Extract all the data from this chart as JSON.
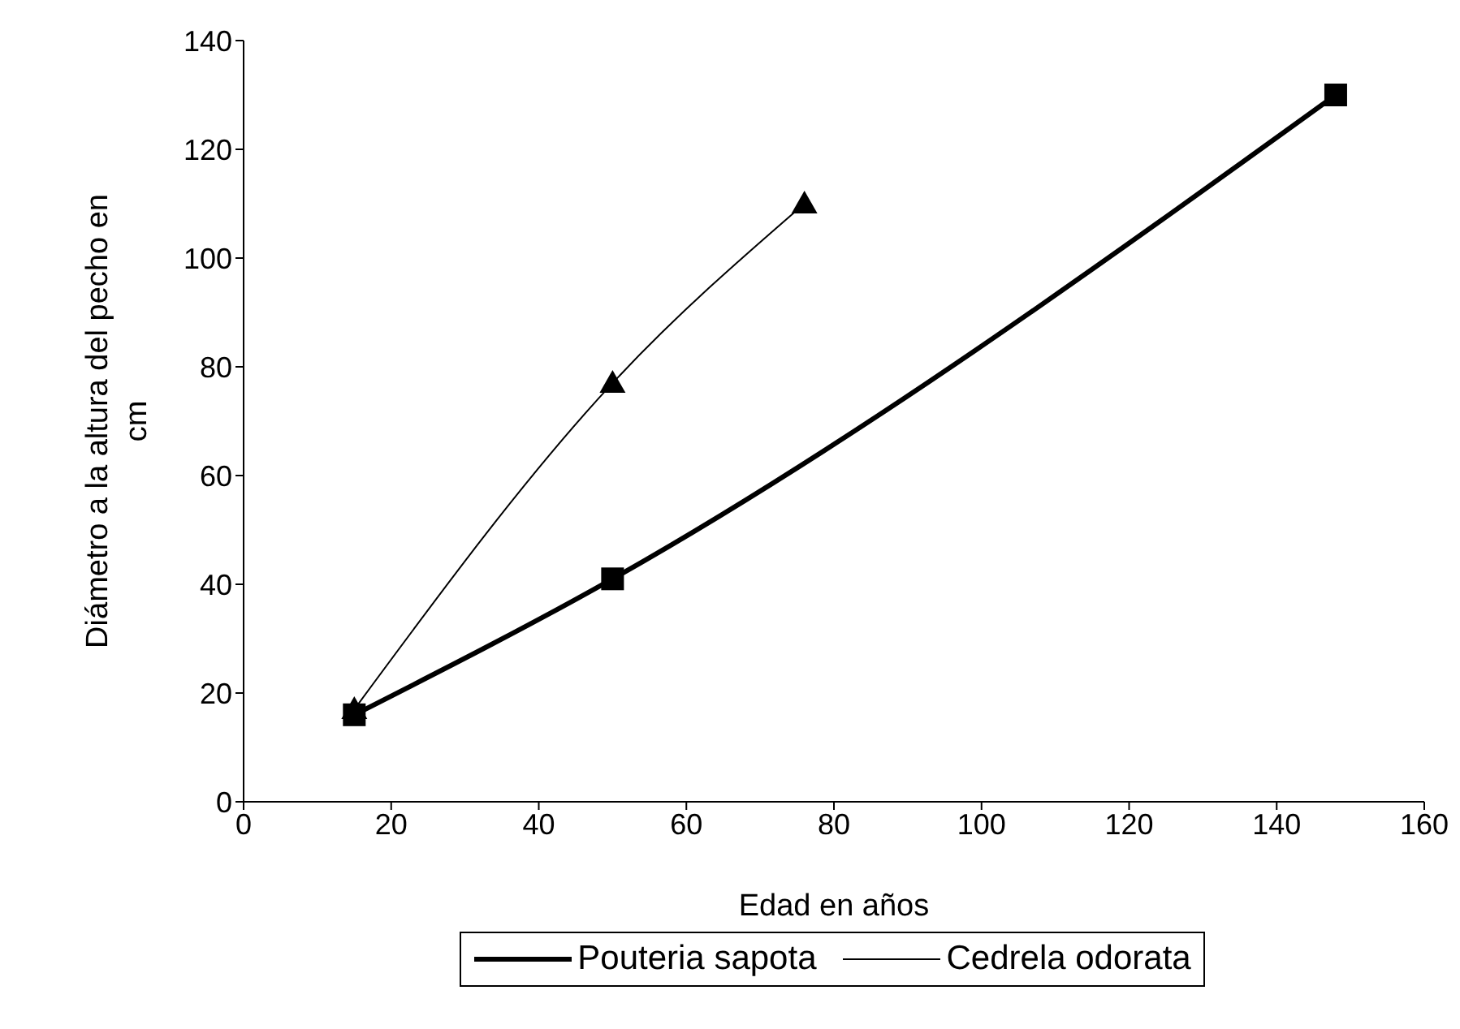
{
  "chart_data": {
    "type": "line",
    "xlabel": "Edad en años",
    "ylabel": "Diámetro a la altura del pecho en cm",
    "xlim": [
      0,
      160
    ],
    "xticks": [
      0,
      20,
      40,
      60,
      80,
      100,
      120,
      140,
      160
    ],
    "ylim": [
      0,
      140
    ],
    "yticks": [
      0,
      20,
      40,
      60,
      80,
      100,
      120,
      140
    ],
    "grid": false,
    "legend": "bottom",
    "series": [
      {
        "name": "Pouteria sapota",
        "color": "#000000",
        "marker": "square",
        "x": [
          15,
          50,
          148
        ],
        "values": [
          16,
          41,
          130
        ]
      },
      {
        "name": "Cedrela odorata",
        "color": "#000000",
        "marker": "triangle",
        "x": [
          15,
          50,
          76
        ],
        "values": [
          17,
          77,
          110
        ]
      }
    ]
  }
}
